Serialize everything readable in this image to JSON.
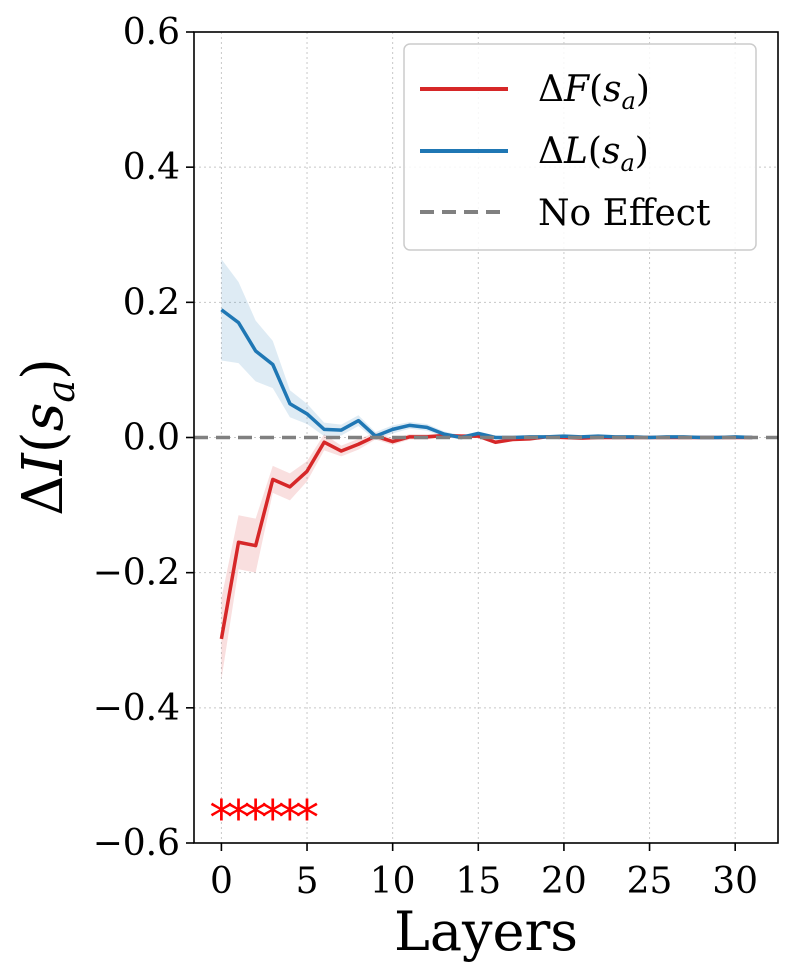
{
  "chart_data": {
    "type": "line",
    "xlabel": "Layers",
    "ylabel": "ΔI(s_a)",
    "xlim": [
      -1.6,
      32.5
    ],
    "ylim": [
      -0.6,
      0.6
    ],
    "xticks": [
      0,
      5,
      10,
      15,
      20,
      25,
      30
    ],
    "xtick_labels": [
      "0",
      "5",
      "10",
      "15",
      "20",
      "25",
      "30"
    ],
    "yticks": [
      0.6,
      0.4,
      0.2,
      0.0,
      -0.2,
      -0.4,
      -0.6
    ],
    "ytick_labels": [
      "0.6",
      "0.4",
      "0.2",
      "0.0",
      "−0.2",
      "−0.4",
      "−0.6"
    ],
    "grid": true,
    "legend_position": "top-right",
    "x": [
      0,
      1,
      2,
      3,
      4,
      5,
      6,
      7,
      8,
      9,
      10,
      11,
      12,
      13,
      14,
      15,
      16,
      17,
      18,
      19,
      20,
      21,
      22,
      23,
      24,
      25,
      26,
      27,
      28,
      29,
      30,
      31
    ],
    "series": [
      {
        "name": "ΔF(s_a)",
        "color": "#d62728",
        "values": [
          -0.298,
          -0.155,
          -0.16,
          -0.062,
          -0.073,
          -0.05,
          -0.007,
          -0.02,
          -0.01,
          0.002,
          -0.006,
          0.001,
          0.001,
          0.003,
          0.002,
          0.002,
          -0.007,
          -0.003,
          -0.002,
          0.001,
          0.0,
          -0.001,
          0.0,
          0.0,
          0.0,
          0.0,
          0.0,
          0.0,
          0.0,
          0.0,
          0.0,
          0.0
        ],
        "band": [
          0.06,
          0.04,
          0.04,
          0.02,
          0.02,
          0.015,
          0.012,
          0.008,
          0.008,
          0.005,
          0.005,
          0.004,
          0.004,
          0.003,
          0.003,
          0.003,
          0.003,
          0.002,
          0.002,
          0.002,
          0.002,
          0.002,
          0.002,
          0.002,
          0.002,
          0.002,
          0.002,
          0.002,
          0.002,
          0.002,
          0.002,
          0.002
        ]
      },
      {
        "name": "ΔL(s_a)",
        "color": "#1f77b4",
        "values": [
          0.189,
          0.17,
          0.128,
          0.108,
          0.05,
          0.035,
          0.012,
          0.011,
          0.025,
          0.002,
          0.012,
          0.018,
          0.015,
          0.005,
          0.0,
          0.006,
          0.0,
          0.0,
          0.001,
          0.001,
          0.002,
          0.001,
          0.002,
          0.001,
          0.001,
          0.0,
          0.001,
          0.001,
          0.0,
          0.0,
          0.001,
          0.0
        ],
        "band": [
          0.075,
          0.06,
          0.045,
          0.035,
          0.02,
          0.015,
          0.01,
          0.008,
          0.008,
          0.006,
          0.006,
          0.005,
          0.005,
          0.004,
          0.003,
          0.003,
          0.003,
          0.002,
          0.002,
          0.002,
          0.002,
          0.002,
          0.002,
          0.002,
          0.002,
          0.002,
          0.002,
          0.002,
          0.002,
          0.002,
          0.002,
          0.002
        ]
      },
      {
        "name": "No Effect",
        "color": "#808080",
        "style": "dashed",
        "constant": 0.0
      }
    ],
    "significance_markers": {
      "symbol": "*",
      "color": "#ff0000",
      "layers": [
        0,
        1,
        2,
        3,
        4,
        5
      ],
      "y": -0.555
    }
  }
}
